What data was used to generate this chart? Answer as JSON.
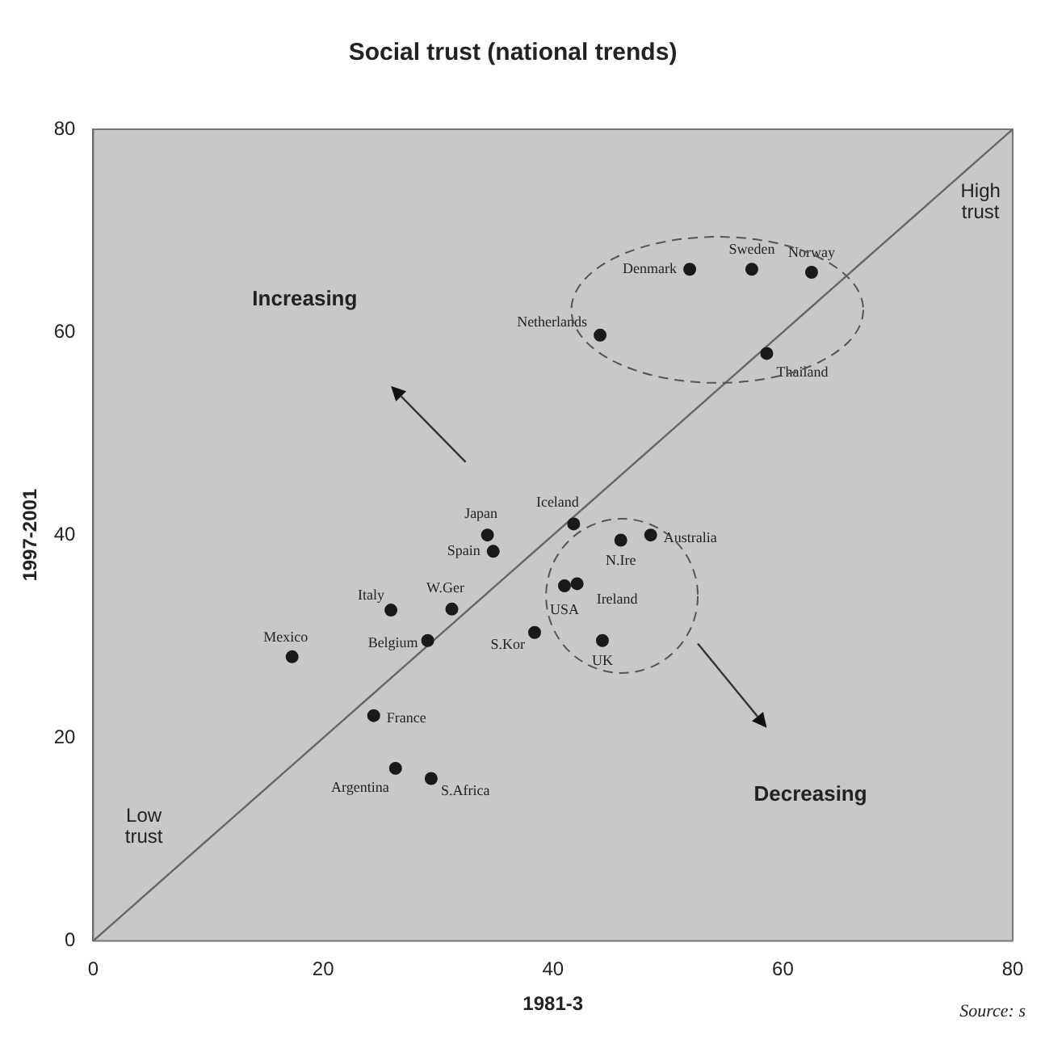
{
  "chart_data": {
    "type": "scatter",
    "title": "Social trust (national trends)",
    "xlabel": "1981-3",
    "ylabel": "1997-2001",
    "xlim": [
      0,
      80
    ],
    "ylim": [
      0,
      80
    ],
    "xticks": [
      0,
      20,
      40,
      60,
      80
    ],
    "yticks": [
      0,
      20,
      40,
      60,
      80
    ],
    "grid": false,
    "legend": false,
    "series": [
      {
        "marker": "circle",
        "color": "#1a1a1a",
        "x": [
          51.9,
          57.3,
          62.5,
          44.1,
          58.6,
          41.8,
          34.3,
          34.8,
          31.2,
          25.9,
          17.3,
          29.1,
          38.4,
          24.4,
          26.3,
          29.4,
          45.9,
          48.5,
          41.0,
          42.1,
          44.3
        ],
        "values": [
          66.2,
          66.2,
          65.9,
          59.7,
          57.9,
          41.1,
          40.0,
          38.4,
          32.7,
          32.6,
          28.0,
          29.6,
          30.4,
          22.2,
          17.0,
          16.0,
          39.5,
          40.0,
          35.0,
          35.2,
          29.6
        ]
      },
      {
        "type": "line",
        "color": "#666666",
        "x": [
          0,
          80
        ],
        "values": [
          0,
          80
        ]
      }
    ],
    "annotations": [
      {
        "text": "Denmark",
        "x": 51.9,
        "y": 66.2
      },
      {
        "text": "Sweden",
        "x": 57.3,
        "y": 66.2
      },
      {
        "text": "Norway",
        "x": 62.5,
        "y": 65.9
      },
      {
        "text": "Netherlands",
        "x": 44.1,
        "y": 59.7
      },
      {
        "text": "Thailand",
        "x": 58.6,
        "y": 57.9
      },
      {
        "text": "Iceland",
        "x": 41.8,
        "y": 41.1
      },
      {
        "text": "Japan",
        "x": 34.3,
        "y": 40.0
      },
      {
        "text": "Spain",
        "x": 34.8,
        "y": 38.4
      },
      {
        "text": "W.Ger",
        "x": 31.2,
        "y": 32.7
      },
      {
        "text": "Italy",
        "x": 25.9,
        "y": 32.6
      },
      {
        "text": "Mexico",
        "x": 17.3,
        "y": 28.0
      },
      {
        "text": "Belgium",
        "x": 29.1,
        "y": 29.6
      },
      {
        "text": "S.Kor",
        "x": 38.4,
        "y": 30.4
      },
      {
        "text": "France",
        "x": 24.4,
        "y": 22.2
      },
      {
        "text": "Argentina",
        "x": 26.3,
        "y": 17.0
      },
      {
        "text": "S.Africa",
        "x": 29.4,
        "y": 16.0
      },
      {
        "text": "N.Ire",
        "x": 45.9,
        "y": 39.5
      },
      {
        "text": "Australia",
        "x": 48.5,
        "y": 40.0
      },
      {
        "text": "USA",
        "x": 41.0,
        "y": 35.0
      },
      {
        "text": "Ireland",
        "x": 42.1,
        "y": 35.2
      },
      {
        "text": "UK",
        "x": 44.3,
        "y": 29.6
      },
      "Increasing",
      "Decreasing",
      "High trust",
      "Low trust",
      "Source: s"
    ]
  }
}
